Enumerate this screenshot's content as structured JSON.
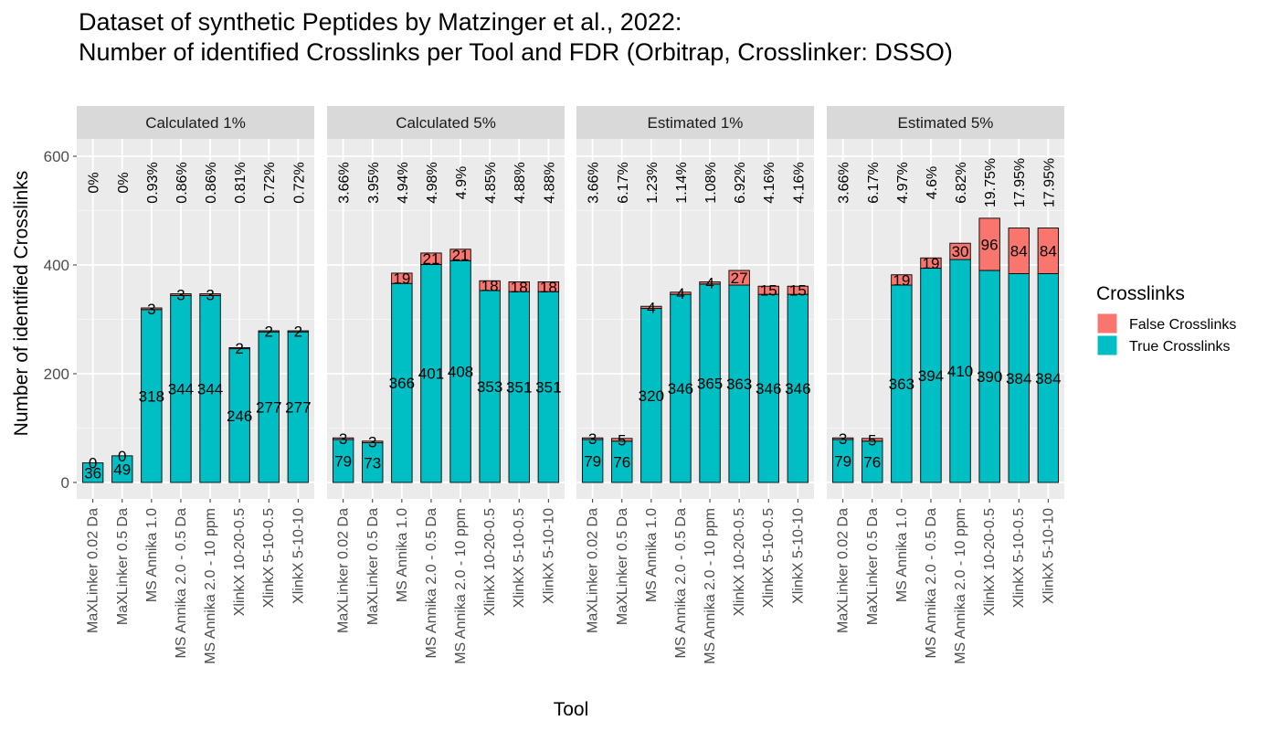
{
  "chart_data": {
    "type": "bar",
    "stacked": true,
    "title_lines": [
      "Dataset of synthetic Peptides by Matzinger et al., 2022:",
      "Number of identified Crosslinks per Tool and FDR (Orbitrap, Crosslinker: DSSO)"
    ],
    "xlabel": "Tool",
    "ylabel": "Number of identified Crosslinks",
    "ylim": [
      0,
      690
    ],
    "yticks": [
      0,
      200,
      400,
      600
    ],
    "grid": true,
    "legend": {
      "title": "Crosslinks",
      "position": "right",
      "entries": [
        {
          "name": "False Crosslinks",
          "color": "#F8766D"
        },
        {
          "name": "True Crosslinks",
          "color": "#00BFC4"
        }
      ]
    },
    "categories": [
      "MaXLinker 0.02 Da",
      "MaXLinker 0.5 Da",
      "MS Annika 1.0",
      "MS Annika 2.0 - 0.5 Da",
      "MS Annika 2.0 - 10 ppm",
      "XlinkX 10-20-0.5",
      "XlinkX 5-10-0.5",
      "XlinkX 5-10-10"
    ],
    "panels": [
      {
        "label": "Calculated 1%",
        "true": [
          36,
          49,
          318,
          344,
          344,
          246,
          277,
          277
        ],
        "false": [
          0,
          0,
          3,
          3,
          3,
          2,
          2,
          2
        ],
        "fdr": [
          "0%",
          "0%",
          "0.93%",
          "0.86%",
          "0.86%",
          "0.81%",
          "0.72%",
          "0.72%"
        ]
      },
      {
        "label": "Calculated 5%",
        "true": [
          79,
          73,
          366,
          401,
          408,
          353,
          351,
          351
        ],
        "false": [
          3,
          3,
          19,
          21,
          21,
          18,
          18,
          18
        ],
        "fdr": [
          "3.66%",
          "3.95%",
          "4.94%",
          "4.98%",
          "4.9%",
          "4.85%",
          "4.88%",
          "4.88%"
        ]
      },
      {
        "label": "Estimated 1%",
        "true": [
          79,
          76,
          320,
          346,
          365,
          363,
          346,
          346
        ],
        "false": [
          3,
          5,
          4,
          4,
          4,
          27,
          15,
          15
        ],
        "fdr": [
          "3.66%",
          "6.17%",
          "1.23%",
          "1.14%",
          "1.08%",
          "6.92%",
          "4.16%",
          "4.16%"
        ]
      },
      {
        "label": "Estimated 5%",
        "true": [
          79,
          76,
          363,
          394,
          410,
          390,
          384,
          384
        ],
        "false": [
          3,
          5,
          19,
          19,
          30,
          96,
          84,
          84
        ],
        "fdr": [
          "3.66%",
          "6.17%",
          "4.97%",
          "4.6%",
          "6.82%",
          "19.75%",
          "17.95%",
          "17.95%"
        ]
      }
    ]
  }
}
